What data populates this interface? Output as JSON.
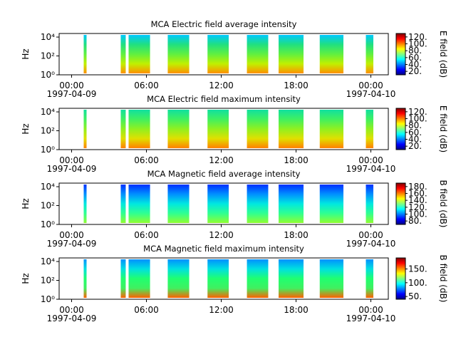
{
  "chart_data": [
    {
      "type": "spectrogram",
      "title": "MCA  Electric field average intensity",
      "ylabel": "Hz",
      "yscale": "log",
      "ylim": [
        1,
        24000
      ],
      "yticks": [
        {
          "value": 1,
          "label": "10⁰"
        },
        {
          "value": 100,
          "label": "10²"
        },
        {
          "value": 10000,
          "label": "10⁴"
        }
      ],
      "xlim": [
        -1,
        25.4
      ],
      "xticks": [
        {
          "value": 0,
          "label": "00:00"
        },
        {
          "value": 6,
          "label": "06:00"
        },
        {
          "value": 12,
          "label": "12:00"
        },
        {
          "value": 18,
          "label": "18:00"
        },
        {
          "value": 24,
          "label": "00:00"
        }
      ],
      "x_dates": [
        {
          "value": 0,
          "label": "1997-04-09"
        },
        {
          "value": 24,
          "label": "1997-04-10"
        }
      ],
      "segments": [
        [
          0.97,
          1.2
        ],
        [
          3.94,
          4.34
        ],
        [
          4.57,
          6.29
        ],
        [
          7.71,
          9.43
        ],
        [
          10.9,
          12.6
        ],
        [
          14.06,
          15.77
        ],
        [
          16.6,
          18.6
        ],
        [
          19.9,
          21.8
        ],
        [
          23.6,
          24.2
        ]
      ],
      "segment_colors": [
        "#00c8ff",
        "#20e080",
        "#60f040",
        "#c0f000",
        "#ff9000"
      ],
      "clabel": "E field (dB)",
      "clim": [
        10,
        130
      ],
      "cticks": [
        {
          "value": 20,
          "label": "20."
        },
        {
          "value": 40,
          "label": "40."
        },
        {
          "value": 60,
          "label": "60."
        },
        {
          "value": 80,
          "label": "80."
        },
        {
          "value": 100,
          "label": "100."
        },
        {
          "value": 120,
          "label": "120."
        }
      ]
    },
    {
      "type": "spectrogram",
      "title": "MCA  Electric field maximum intensity",
      "ylabel": "Hz",
      "yscale": "log",
      "ylim": [
        1,
        24000
      ],
      "yticks": [
        {
          "value": 1,
          "label": "10⁰"
        },
        {
          "value": 100,
          "label": "10²"
        },
        {
          "value": 10000,
          "label": "10⁴"
        }
      ],
      "xlim": [
        -1,
        25.4
      ],
      "xticks": [
        {
          "value": 0,
          "label": "00:00"
        },
        {
          "value": 6,
          "label": "06:00"
        },
        {
          "value": 12,
          "label": "12:00"
        },
        {
          "value": 18,
          "label": "18:00"
        },
        {
          "value": 24,
          "label": "00:00"
        }
      ],
      "x_dates": [
        {
          "value": 0,
          "label": "1997-04-09"
        },
        {
          "value": 24,
          "label": "1997-04-10"
        }
      ],
      "segments": [
        [
          0.97,
          1.2
        ],
        [
          3.94,
          4.34
        ],
        [
          4.57,
          6.29
        ],
        [
          7.71,
          9.43
        ],
        [
          10.9,
          12.6
        ],
        [
          14.06,
          15.77
        ],
        [
          16.6,
          18.6
        ],
        [
          19.9,
          21.8
        ],
        [
          23.6,
          24.2
        ]
      ],
      "segment_colors": [
        "#10e0a0",
        "#40f060",
        "#90f020",
        "#e0e000",
        "#ff8000"
      ],
      "clabel": "E field (dB)",
      "clim": [
        10,
        130
      ],
      "cticks": [
        {
          "value": 20,
          "label": "20."
        },
        {
          "value": 40,
          "label": "40."
        },
        {
          "value": 60,
          "label": "60."
        },
        {
          "value": 80,
          "label": "80."
        },
        {
          "value": 100,
          "label": "100."
        },
        {
          "value": 120,
          "label": "120."
        }
      ]
    },
    {
      "type": "spectrogram",
      "title": "MCA  Magnetic field average intensity",
      "ylabel": "Hz",
      "yscale": "log",
      "ylim": [
        1,
        24000
      ],
      "yticks": [
        {
          "value": 1,
          "label": "10⁰"
        },
        {
          "value": 100,
          "label": "10²"
        },
        {
          "value": 10000,
          "label": "10⁴"
        }
      ],
      "xlim": [
        -1,
        25.4
      ],
      "xticks": [
        {
          "value": 0,
          "label": "00:00"
        },
        {
          "value": 6,
          "label": "06:00"
        },
        {
          "value": 12,
          "label": "12:00"
        },
        {
          "value": 18,
          "label": "18:00"
        },
        {
          "value": 24,
          "label": "00:00"
        }
      ],
      "x_dates": [
        {
          "value": 0,
          "label": "1997-04-09"
        },
        {
          "value": 24,
          "label": "1997-04-10"
        }
      ],
      "segments": [
        [
          0.97,
          1.2
        ],
        [
          3.94,
          4.34
        ],
        [
          4.57,
          6.29
        ],
        [
          7.71,
          9.43
        ],
        [
          10.9,
          12.6
        ],
        [
          14.06,
          15.77
        ],
        [
          16.6,
          18.6
        ],
        [
          19.9,
          21.8
        ],
        [
          23.6,
          24.2
        ]
      ],
      "segment_colors": [
        "#0030ff",
        "#0090ff",
        "#00e8e0",
        "#30ff90",
        "#90ff30"
      ],
      "clabel": "B field (dB)",
      "clim": [
        70,
        190
      ],
      "cticks": [
        {
          "value": 80,
          "label": "80."
        },
        {
          "value": 100,
          "label": "100."
        },
        {
          "value": 120,
          "label": "120."
        },
        {
          "value": 140,
          "label": "140."
        },
        {
          "value": 160,
          "label": "160."
        },
        {
          "value": 180,
          "label": "180."
        }
      ]
    },
    {
      "type": "spectrogram",
      "title": "MCA  Magnetic field maximum intensity",
      "ylabel": "Hz",
      "yscale": "log",
      "ylim": [
        1,
        24000
      ],
      "yticks": [
        {
          "value": 1,
          "label": "10⁰"
        },
        {
          "value": 100,
          "label": "10²"
        },
        {
          "value": 10000,
          "label": "10⁴"
        }
      ],
      "xlim": [
        -1,
        25.4
      ],
      "xticks": [
        {
          "value": 0,
          "label": "00:00"
        },
        {
          "value": 6,
          "label": "06:00"
        },
        {
          "value": 12,
          "label": "12:00"
        },
        {
          "value": 18,
          "label": "18:00"
        },
        {
          "value": 24,
          "label": "00:00"
        }
      ],
      "x_dates": [
        {
          "value": 0,
          "label": "1997-04-09"
        },
        {
          "value": 24,
          "label": "1997-04-10"
        }
      ],
      "segments": [
        [
          0.97,
          1.2
        ],
        [
          3.94,
          4.34
        ],
        [
          4.57,
          6.29
        ],
        [
          7.71,
          9.43
        ],
        [
          10.9,
          12.6
        ],
        [
          14.06,
          15.77
        ],
        [
          16.6,
          18.6
        ],
        [
          19.9,
          21.8
        ],
        [
          23.6,
          24.2
        ]
      ],
      "segment_colors": [
        "#0090ff",
        "#00e0e0",
        "#20ff70",
        "#40f060",
        "#ff6000"
      ],
      "clabel": "B field (dB)",
      "clim": [
        40,
        190
      ],
      "cticks": [
        {
          "value": 50,
          "label": "50."
        },
        {
          "value": 100,
          "label": "100."
        },
        {
          "value": 150,
          "label": "150."
        }
      ]
    }
  ],
  "colormap": [
    "#00007f",
    "#0000ff",
    "#0080ff",
    "#00ffff",
    "#80ff80",
    "#ffff00",
    "#ff8000",
    "#ff0000",
    "#7f0000"
  ]
}
